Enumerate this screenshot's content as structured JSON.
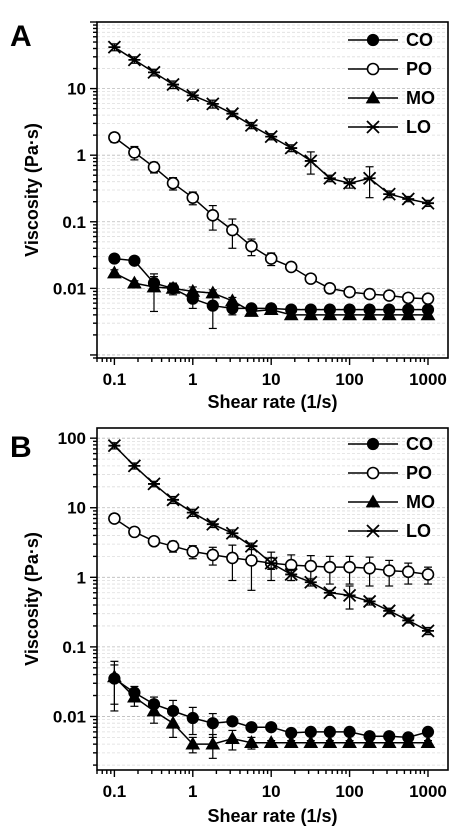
{
  "figure": {
    "panels": [
      "A",
      "B"
    ]
  },
  "chart_data": [
    {
      "type": "line",
      "panel": "A",
      "x_scale": "log",
      "y_scale": "log",
      "xlabel": "Shear rate (1/s)",
      "ylabel": "Viscosity (Pa·s)",
      "xlim": [
        0.06,
        1800
      ],
      "ylim": [
        0.0009,
        100
      ],
      "x_ticks": [
        0.1,
        1,
        10,
        100,
        1000
      ],
      "x_tick_labels": [
        "0.1",
        "1",
        "10",
        "100",
        "1000"
      ],
      "y_ticks": [
        0.01,
        0.1,
        1,
        10
      ],
      "y_tick_labels": [
        "0.01",
        "0.1",
        "1",
        "10"
      ],
      "grid": "horizontal minor gridlines",
      "legend_position": "top-right",
      "x": [
        0.1,
        0.18,
        0.32,
        0.56,
        1,
        1.8,
        3.2,
        5.6,
        10,
        18,
        32,
        56,
        100,
        180,
        320,
        560,
        1000
      ],
      "series": [
        {
          "name": "CO",
          "marker": "filled-circle",
          "values": [
            0.028,
            0.026,
            0.012,
            0.01,
            0.007,
            0.0055,
            0.005,
            0.005,
            0.005,
            0.0048,
            0.0048,
            0.0048,
            0.0048,
            0.0048,
            0.0048,
            0.0048,
            0.0048
          ],
          "errors": [
            0.002,
            0.002,
            0.003,
            0.002,
            0.002,
            0.003,
            0.001,
            0.0005,
            0.0005,
            0.0003,
            0.0003,
            0.0003,
            0.0003,
            0.0003,
            0.0003,
            0.0003,
            0.0003
          ]
        },
        {
          "name": "PO",
          "marker": "open-circle",
          "values": [
            1.85,
            1.1,
            0.66,
            0.38,
            0.23,
            0.125,
            0.075,
            0.043,
            0.028,
            0.021,
            0.014,
            0.01,
            0.0088,
            0.0082,
            0.0078,
            0.0072,
            0.007
          ],
          "errors": [
            0.3,
            0.25,
            0.12,
            0.08,
            0.05,
            0.05,
            0.035,
            0.012,
            0.006,
            0.002,
            0.001,
            0.0015,
            0.0008,
            0.0005,
            0.0005,
            0.0008,
            0.0008
          ]
        },
        {
          "name": "MO",
          "marker": "filled-triangle",
          "values": [
            0.017,
            0.012,
            0.0105,
            0.01,
            0.009,
            0.0085,
            0.0065,
            0.0045,
            0.0048,
            0.004,
            0.004,
            0.004,
            0.004,
            0.004,
            0.004,
            0.004,
            0.004
          ],
          "errors": [
            0.002,
            0.001,
            0.006,
            0.0015,
            0.0015,
            0.001,
            0.0008,
            0.0005,
            0.0004,
            0.0003,
            0.0003,
            0.0003,
            0.0003,
            0.0003,
            0.0003,
            0.0003,
            0.0003
          ]
        },
        {
          "name": "LO",
          "marker": "asterisk",
          "values": [
            42,
            27,
            17.5,
            11.5,
            7.9,
            5.9,
            4.2,
            2.8,
            1.9,
            1.28,
            0.82,
            0.45,
            0.38,
            0.45,
            0.26,
            0.22,
            0.19
          ],
          "errors": [
            5,
            3,
            2,
            1.5,
            1,
            0.8,
            0.4,
            0.3,
            0.2,
            0.15,
            0.3,
            0.05,
            0.06,
            0.22,
            0.03,
            0.02,
            0.02
          ]
        }
      ]
    },
    {
      "type": "line",
      "panel": "B",
      "x_scale": "log",
      "y_scale": "log",
      "xlabel": "Shear rate (1/s)",
      "ylabel": "Viscosity (Pa·s)",
      "xlim": [
        0.06,
        1800
      ],
      "ylim": [
        0.0017,
        140
      ],
      "x_ticks": [
        0.1,
        1,
        10,
        100,
        1000
      ],
      "x_tick_labels": [
        "0.1",
        "1",
        "10",
        "100",
        "1000"
      ],
      "y_ticks": [
        0.01,
        0.1,
        1,
        10,
        100
      ],
      "y_tick_labels": [
        "0.01",
        "0.1",
        "1",
        "10",
        "100"
      ],
      "grid": "horizontal minor gridlines",
      "legend_position": "top-right",
      "x": [
        0.1,
        0.18,
        0.32,
        0.56,
        1,
        1.8,
        3.2,
        5.6,
        10,
        18,
        32,
        56,
        100,
        180,
        320,
        560,
        1000
      ],
      "series": [
        {
          "name": "CO",
          "marker": "filled-circle",
          "values": [
            0.035,
            0.022,
            0.015,
            0.012,
            0.0095,
            0.008,
            0.0085,
            0.007,
            0.007,
            0.0058,
            0.006,
            0.006,
            0.006,
            0.0052,
            0.0052,
            0.005,
            0.006
          ],
          "errors": [
            0.02,
            0.005,
            0.004,
            0.005,
            0.004,
            0.003,
            0.001,
            0.0005,
            0.0005,
            0.0005,
            0.0005,
            0.0005,
            0.0005,
            0.0004,
            0.0004,
            0.0004,
            0.0006
          ]
        },
        {
          "name": "PO",
          "marker": "open-circle",
          "values": [
            7,
            4.5,
            3.3,
            2.8,
            2.35,
            2.1,
            1.9,
            1.75,
            1.6,
            1.5,
            1.45,
            1.4,
            1.4,
            1.35,
            1.25,
            1.2,
            1.1
          ],
          "errors": [
            0.6,
            0.5,
            0.4,
            0.5,
            0.5,
            0.6,
            1,
            1.1,
            0.7,
            0.6,
            0.6,
            0.6,
            0.6,
            0.6,
            0.5,
            0.4,
            0.3
          ]
        },
        {
          "name": "MO",
          "marker": "filled-triangle",
          "values": [
            0.037,
            0.019,
            0.012,
            0.008,
            0.004,
            0.004,
            0.0048,
            0.0042,
            0.0042,
            0.0042,
            0.0042,
            0.0042,
            0.0042,
            0.0042,
            0.0042,
            0.0042,
            0.0042
          ],
          "errors": [
            0.025,
            0.005,
            0.004,
            0.003,
            0.001,
            0.0015,
            0.0015,
            0.0008,
            0.0003,
            0.0003,
            0.0003,
            0.0003,
            0.0003,
            0.0003,
            0.0003,
            0.0003,
            0.0003
          ]
        },
        {
          "name": "LO",
          "marker": "asterisk",
          "values": [
            78,
            40,
            22,
            13,
            8.5,
            5.8,
            4.3,
            2.8,
            1.6,
            1.1,
            0.85,
            0.6,
            0.55,
            0.45,
            0.33,
            0.24,
            0.17
          ],
          "errors": [
            8,
            4,
            2,
            1.5,
            1,
            0.6,
            0.5,
            0.3,
            0.3,
            0.2,
            0.1,
            0.05,
            0.2,
            0.05,
            0.03,
            0.02,
            0.02
          ]
        }
      ]
    }
  ]
}
